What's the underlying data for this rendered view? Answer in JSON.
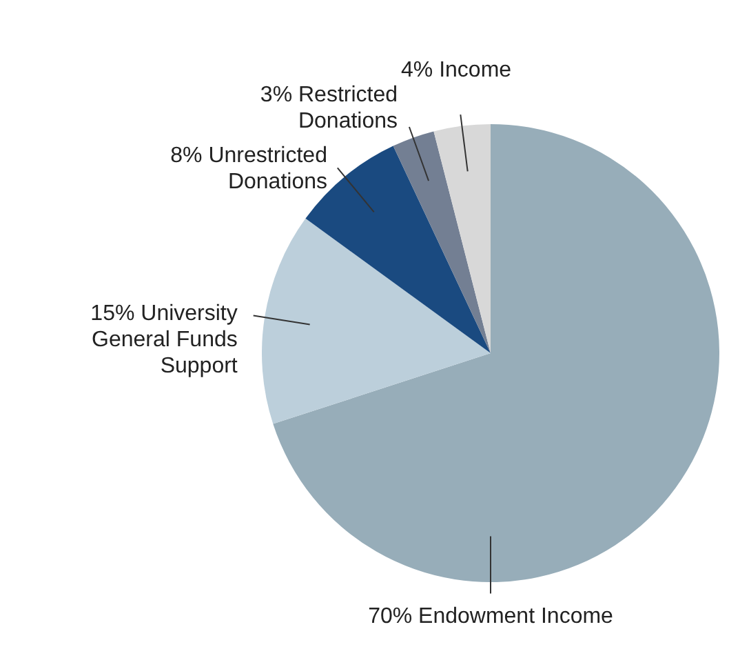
{
  "chart_data": {
    "type": "pie",
    "categories": [
      "Endowment Income",
      "University General Funds Support",
      "Unrestricted Donations",
      "Restricted Donations",
      "Income"
    ],
    "values": [
      70,
      15,
      8,
      3,
      4
    ],
    "value_labels": [
      "70%",
      "15%",
      "8%",
      "3%",
      "4%"
    ],
    "colors": [
      "#97adb9",
      "#bccfdb",
      "#1a4a80",
      "#737f93",
      "#d8d8d8"
    ]
  }
}
